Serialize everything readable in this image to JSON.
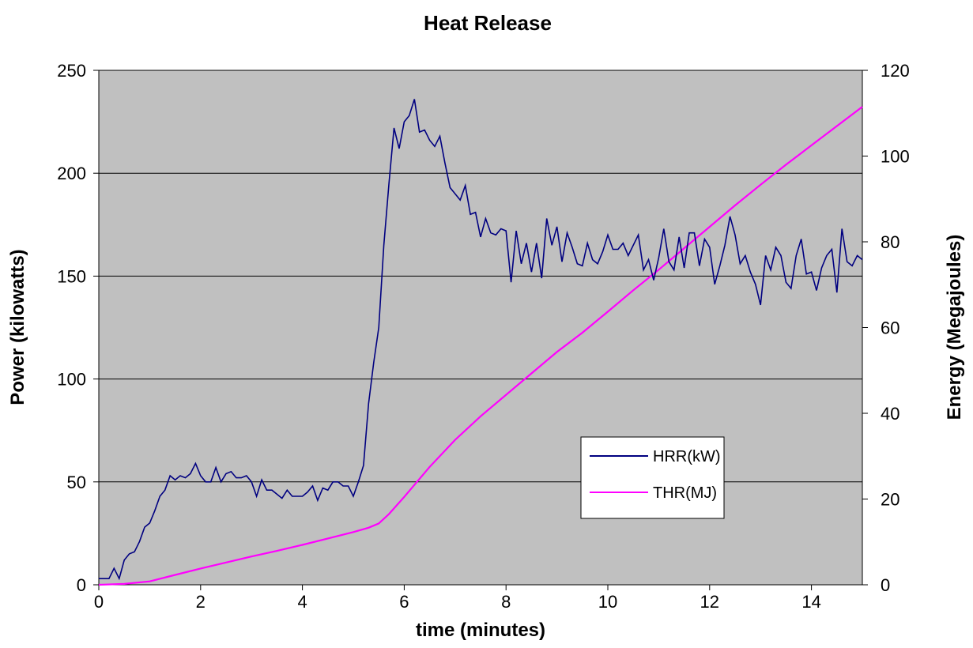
{
  "chart_data": {
    "type": "line",
    "title": "Heat Release",
    "xlabel": "time (minutes)",
    "ylabel_left": "Power (kilowatts)",
    "ylabel_right": "Energy (Megajoules)",
    "xlim": [
      0,
      15
    ],
    "ylim_left": [
      0,
      250
    ],
    "ylim_right": [
      0,
      120
    ],
    "x_ticks": [
      0,
      2,
      4,
      6,
      8,
      10,
      12,
      14
    ],
    "y_left_ticks": [
      0,
      50,
      100,
      150,
      200,
      250
    ],
    "y_right_ticks": [
      0,
      20,
      40,
      60,
      80,
      100,
      120
    ],
    "grid": "horizontal",
    "legend_placement": "center-right",
    "colors": {
      "plot_background": "#c0c0c0",
      "HRR": "#000080",
      "THR": "#ff00ff",
      "grid": "#000000"
    },
    "series": [
      {
        "name": "HRR(kW)",
        "axis": "left",
        "x": [
          0.0,
          0.2,
          0.3,
          0.4,
          0.5,
          0.6,
          0.7,
          0.8,
          0.9,
          1.0,
          1.1,
          1.2,
          1.3,
          1.4,
          1.5,
          1.6,
          1.7,
          1.8,
          1.9,
          2.0,
          2.1,
          2.2,
          2.3,
          2.4,
          2.5,
          2.6,
          2.7,
          2.8,
          2.9,
          3.0,
          3.1,
          3.2,
          3.3,
          3.4,
          3.5,
          3.6,
          3.7,
          3.8,
          3.9,
          4.0,
          4.1,
          4.2,
          4.3,
          4.4,
          4.5,
          4.6,
          4.7,
          4.8,
          4.9,
          5.0,
          5.1,
          5.2,
          5.3,
          5.4,
          5.5,
          5.6,
          5.7,
          5.8,
          5.9,
          6.0,
          6.1,
          6.2,
          6.3,
          6.4,
          6.5,
          6.6,
          6.7,
          6.8,
          6.9,
          7.0,
          7.1,
          7.2,
          7.3,
          7.4,
          7.5,
          7.6,
          7.7,
          7.8,
          7.9,
          8.0,
          8.1,
          8.2,
          8.3,
          8.4,
          8.5,
          8.6,
          8.7,
          8.8,
          8.9,
          9.0,
          9.1,
          9.2,
          9.3,
          9.4,
          9.5,
          9.6,
          9.7,
          9.8,
          9.9,
          10.0,
          10.1,
          10.2,
          10.3,
          10.4,
          10.5,
          10.6,
          10.7,
          10.8,
          10.9,
          11.0,
          11.1,
          11.2,
          11.3,
          11.4,
          11.5,
          11.6,
          11.7,
          11.8,
          11.9,
          12.0,
          12.1,
          12.2,
          12.3,
          12.4,
          12.5,
          12.6,
          12.7,
          12.8,
          12.9,
          13.0,
          13.1,
          13.2,
          13.3,
          13.4,
          13.5,
          13.6,
          13.7,
          13.8,
          13.9,
          14.0,
          14.1,
          14.2,
          14.3,
          14.4,
          14.5,
          14.6,
          14.7,
          14.8,
          14.9,
          15.0
        ],
        "y": [
          3,
          3,
          8,
          3,
          12,
          15,
          16,
          21,
          28,
          30,
          36,
          43,
          46,
          53,
          51,
          53,
          52,
          54,
          59,
          53,
          50,
          50,
          57,
          50,
          54,
          55,
          52,
          52,
          53,
          50,
          43,
          51,
          46,
          46,
          44,
          42,
          46,
          43,
          43,
          43,
          45,
          48,
          41,
          47,
          46,
          50,
          50,
          48,
          48,
          43,
          50,
          58,
          88,
          108,
          125,
          165,
          195,
          222,
          212,
          225,
          228,
          236,
          220,
          221,
          216,
          213,
          218,
          205,
          193,
          190,
          187,
          194,
          180,
          181,
          169,
          178,
          171,
          170,
          173,
          172,
          147,
          172,
          156,
          166,
          152,
          166,
          149,
          178,
          165,
          174,
          157,
          171,
          164,
          156,
          155,
          166,
          158,
          156,
          162,
          170,
          163,
          163,
          166,
          160,
          165,
          170,
          153,
          158,
          148,
          159,
          173,
          157,
          153,
          169,
          154,
          171,
          171,
          155,
          168,
          164,
          146,
          155,
          165,
          179,
          170,
          156,
          160,
          152,
          146,
          136,
          160,
          153,
          164,
          160,
          147,
          144,
          160,
          168,
          151,
          152,
          143,
          154,
          160,
          163,
          142,
          173,
          157,
          155,
          160,
          158
        ]
      },
      {
        "name": "THR(MJ)",
        "axis": "right",
        "x": [
          0,
          0.5,
          1.0,
          1.5,
          2.0,
          2.5,
          3.0,
          3.5,
          4.0,
          4.5,
          5.0,
          5.3,
          5.5,
          5.7,
          6.0,
          6.5,
          7.0,
          7.5,
          8.0,
          8.5,
          9.0,
          9.5,
          10.0,
          10.5,
          11.0,
          11.5,
          12.0,
          12.5,
          13.0,
          13.5,
          14.0,
          14.5,
          15.0
        ],
        "y": [
          0,
          0.2,
          0.8,
          2.3,
          3.8,
          5.2,
          6.6,
          7.9,
          9.3,
          10.8,
          12.3,
          13.3,
          14.3,
          16.5,
          20.5,
          27.5,
          33.8,
          39.3,
          44.3,
          49.3,
          54.3,
          58.8,
          63.7,
          68.7,
          73.5,
          78.5,
          83.5,
          88.5,
          93.3,
          98.0,
          102.5,
          107.0,
          111.5
        ]
      }
    ]
  }
}
